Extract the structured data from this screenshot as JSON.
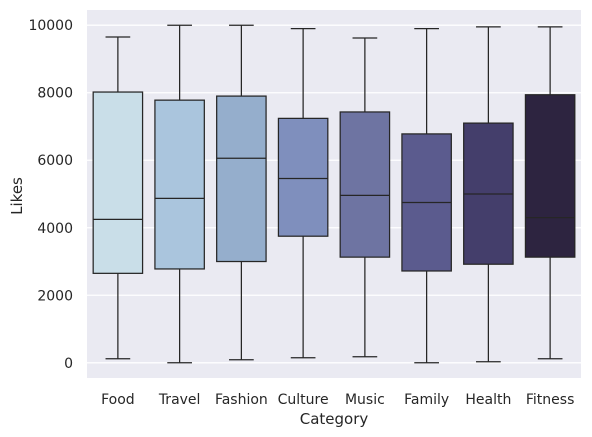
{
  "chart_data": {
    "type": "box",
    "xlabel": "Category",
    "ylabel": "Likes",
    "ylim": [
      -450,
      10450
    ],
    "yticks": [
      0,
      2000,
      4000,
      6000,
      8000,
      10000
    ],
    "grid": true,
    "background": "#eaeaf2",
    "categories": [
      "Food",
      "Travel",
      "Fashion",
      "Culture",
      "Music",
      "Family",
      "Health",
      "Fitness"
    ],
    "boxes": [
      {
        "category": "Food",
        "whisker_low": 120,
        "q1": 2650,
        "median": 4250,
        "q3": 8020,
        "whisker_high": 9650,
        "color": "#c9dee8"
      },
      {
        "category": "Travel",
        "whisker_low": 0,
        "q1": 2780,
        "median": 4870,
        "q3": 7780,
        "whisker_high": 10000,
        "color": "#aac5dd"
      },
      {
        "category": "Fashion",
        "whisker_low": 90,
        "q1": 3000,
        "median": 6060,
        "q3": 7900,
        "whisker_high": 10000,
        "color": "#95aecc"
      },
      {
        "category": "Culture",
        "whisker_low": 150,
        "q1": 3750,
        "median": 5460,
        "q3": 7240,
        "whisker_high": 9900,
        "color": "#7f8fbd"
      },
      {
        "category": "Music",
        "whisker_low": 180,
        "q1": 3130,
        "median": 4960,
        "q3": 7430,
        "whisker_high": 9620,
        "color": "#6e74a2"
      },
      {
        "category": "Family",
        "whisker_low": 0,
        "q1": 2720,
        "median": 4750,
        "q3": 6780,
        "whisker_high": 9900,
        "color": "#5b5b8e"
      },
      {
        "category": "Health",
        "whisker_low": 30,
        "q1": 2920,
        "median": 5000,
        "q3": 7100,
        "whisker_high": 9950,
        "color": "#443e6b"
      },
      {
        "category": "Fitness",
        "whisker_low": 120,
        "q1": 3130,
        "median": 4300,
        "q3": 7940,
        "whisker_high": 9950,
        "color": "#2d2440"
      }
    ]
  }
}
